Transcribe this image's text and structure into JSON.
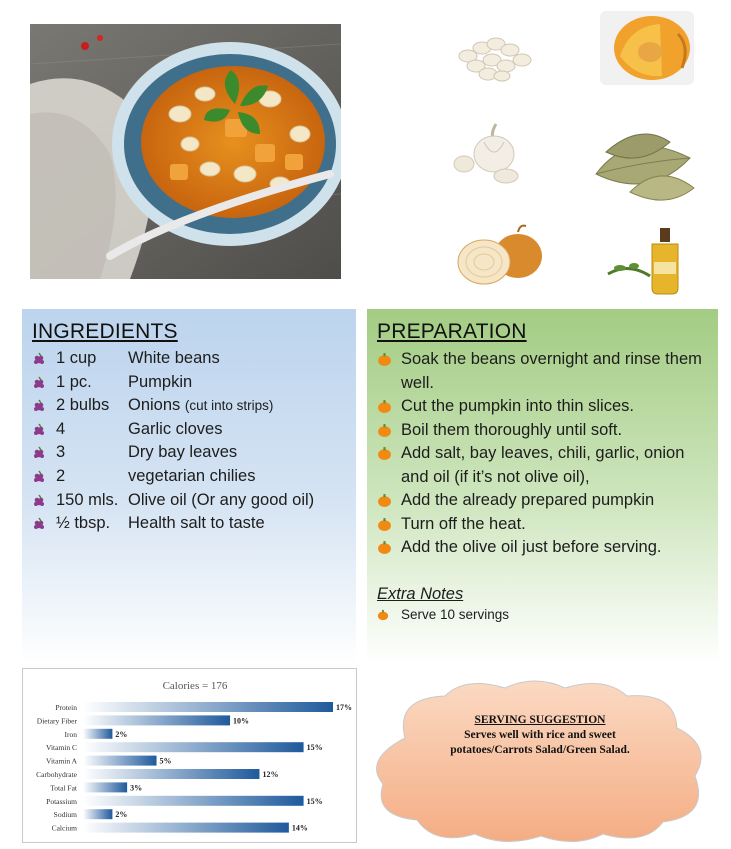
{
  "ingredients": {
    "title": "INGREDIENTS",
    "items": [
      {
        "qty": "1 cup",
        "name": "White beans",
        "note": ""
      },
      {
        "qty": "1 pc.",
        "name": "Pumpkin",
        "note": ""
      },
      {
        "qty": "2 bulbs",
        "name": "Onions",
        "note": "(cut into strips)"
      },
      {
        "qty": "4",
        "name": "Garlic cloves",
        "note": ""
      },
      {
        "qty": "3",
        "name": "Dry bay leaves",
        "note": ""
      },
      {
        "qty": "2",
        "name": "vegetarian chilies",
        "note": ""
      },
      {
        "qty": "150 mls.",
        "name": "Olive oil (Or any good oil)",
        "note": ""
      },
      {
        "qty": "½ tbsp.",
        "name": "Health salt to taste",
        "note": ""
      }
    ]
  },
  "preparation": {
    "title": "PREPARATION",
    "steps": [
      "Soak the beans overnight and rinse them well.",
      "Cut the pumpkin into thin slices.",
      "Boil them thoroughly until soft.",
      "Add salt, bay leaves, chili, garlic, onion and oil (if it’s not olive oil),",
      "Add the already prepared pumpkin",
      "Turn off the heat.",
      "Add the olive oil just before serving."
    ],
    "extra_title": "Extra Notes",
    "extra_notes": [
      "Serve 10 servings"
    ]
  },
  "serving": {
    "title": "SERVING SUGGESTION",
    "text": "Serves well with rice and sweet potatoes/Carrots Salad/Green Salad."
  },
  "images": {
    "hero": "bean-pumpkin-stew-photo",
    "thumbs": [
      "white-beans",
      "pumpkin",
      "garlic",
      "bay-leaves",
      "onion",
      "olive-oil"
    ]
  },
  "colors": {
    "ingredients_panel": "#bcd4ee",
    "preparation_panel": "#a3cc83",
    "bar": "#1f5a9c",
    "cloud": "#f6b893"
  },
  "chart_data": {
    "type": "bar",
    "orientation": "horizontal",
    "title": "Calories = 176",
    "categories": [
      "Protein",
      "Dietary Fiber",
      "Iron",
      "Vitamin C",
      "Vitamin A",
      "Carbohydrate",
      "Total Fat",
      "Potassium",
      "Sodium",
      "Calcium"
    ],
    "values": [
      17,
      10,
      2,
      15,
      5,
      12,
      3,
      15,
      2,
      14
    ],
    "value_labels": [
      "17%",
      "10%",
      "2%",
      "15%",
      "5%",
      "12%",
      "3%",
      "15%",
      "2%",
      "14%"
    ],
    "xlim": [
      0,
      17
    ],
    "grid": false,
    "legend": "none"
  }
}
